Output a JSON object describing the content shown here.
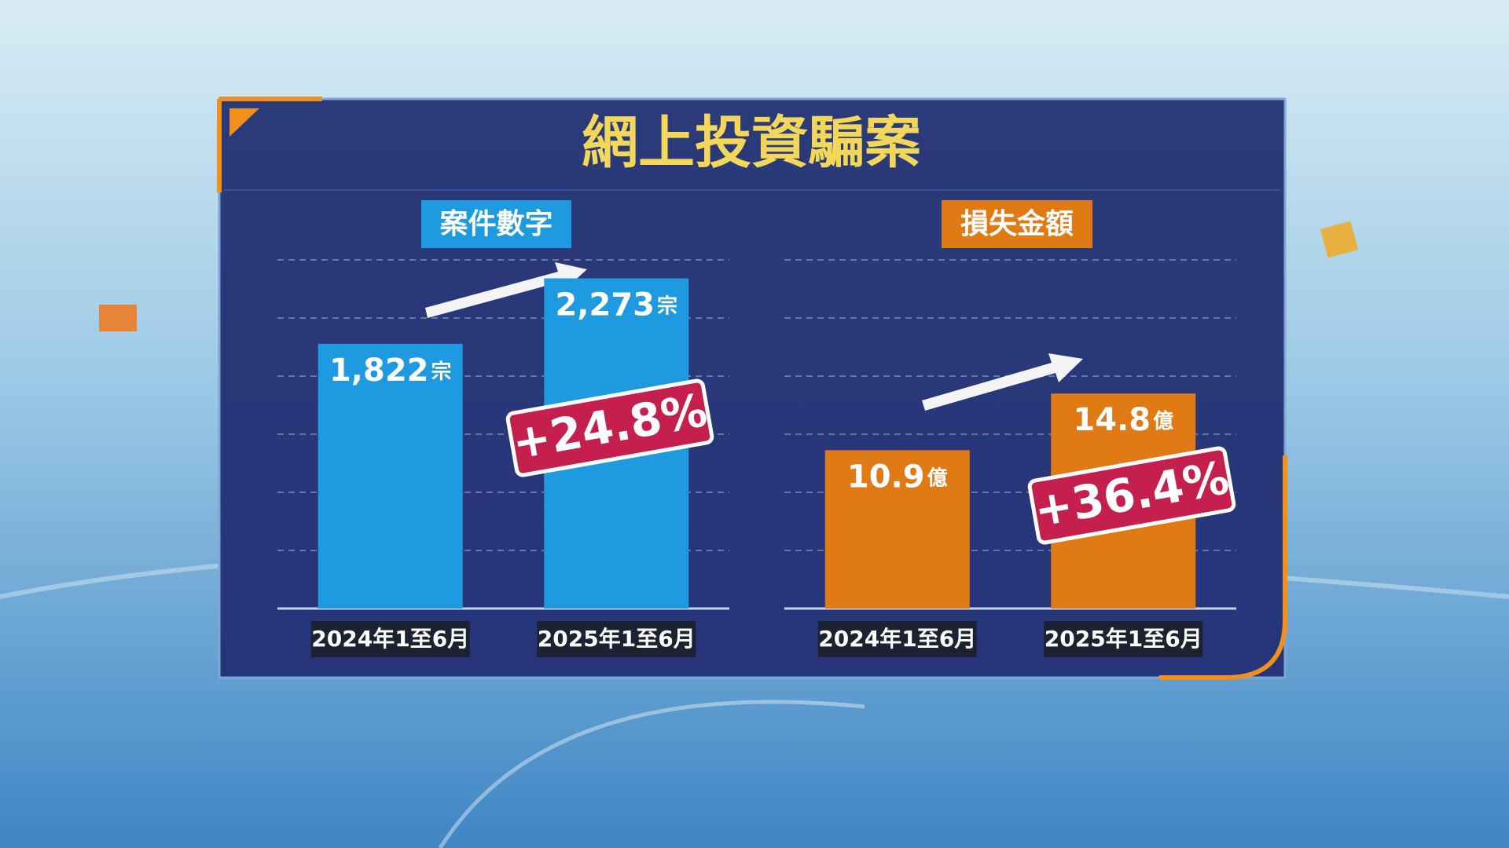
{
  "header": {
    "title": "網上投資騙案"
  },
  "chart_data": [
    {
      "type": "bar",
      "title": "案件數字",
      "categories": [
        "2024年1至6月",
        "2025年1至6月"
      ],
      "values": [
        1822,
        2273
      ],
      "value_labels": [
        "1,822",
        "2,273"
      ],
      "unit": "宗",
      "annotation": "+24.8%",
      "color": "#1e9be0",
      "ylim": [
        0,
        2400
      ],
      "yticks": [
        0,
        400,
        800,
        1200,
        1600,
        2000,
        2400
      ],
      "grid": true
    },
    {
      "type": "bar",
      "title": "損失金額",
      "categories": [
        "2024年1至6月",
        "2025年1至6月"
      ],
      "values": [
        10.9,
        14.8
      ],
      "unit": "億",
      "annotation": "+36.4%",
      "color": "#e07a14",
      "ylim": [
        0,
        24
      ],
      "yticks": [
        0,
        4,
        8,
        12,
        16,
        20,
        24
      ],
      "grid": true
    }
  ]
}
